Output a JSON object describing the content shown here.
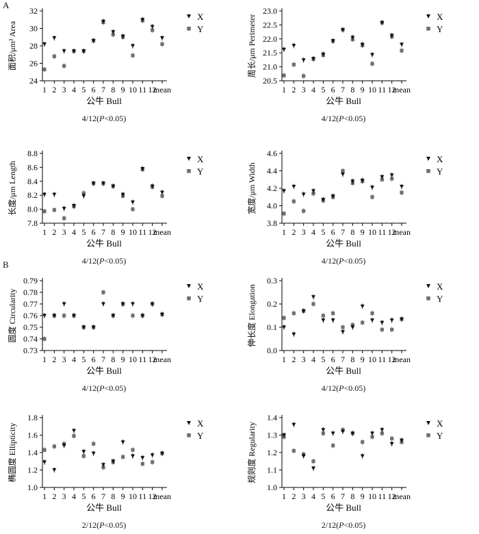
{
  "section_labels": {
    "a": "A",
    "b": "B"
  },
  "legend_labels": {
    "x": "X",
    "y": "Y"
  },
  "chart_data": [
    {
      "type": "scatter",
      "id": "area",
      "ylabel": "面积/μm² Area",
      "xlabel": "公牛 Bull",
      "caption": "4/12(P<0.05)",
      "ylim": [
        24,
        32
      ],
      "yticks": [
        24,
        26,
        28,
        30,
        32
      ],
      "categories": [
        "1",
        "2",
        "3",
        "4",
        "5",
        "6",
        "7",
        "8",
        "9",
        "10",
        "11",
        "12",
        "mean"
      ],
      "series": [
        {
          "name": "X",
          "values": [
            28.2,
            28.9,
            27.4,
            27.4,
            27.4,
            28.6,
            30.8,
            29.6,
            29.1,
            28.0,
            31.0,
            30.2,
            28.9
          ]
        },
        {
          "name": "Y",
          "values": [
            25.3,
            26.8,
            25.7,
            27.4,
            27.4,
            28.6,
            30.7,
            29.3,
            29.0,
            26.9,
            30.9,
            29.8,
            28.2
          ]
        }
      ]
    },
    {
      "type": "scatter",
      "id": "perimeter",
      "ylabel": "周长/μm Perimeter",
      "xlabel": "公牛 Bull",
      "caption": "4/12(P<0.05)",
      "ylim": [
        20.5,
        23.0
      ],
      "yticks": [
        20.5,
        21.0,
        21.5,
        22.0,
        22.5,
        23.0
      ],
      "categories": [
        "1",
        "2",
        "3",
        "4",
        "5",
        "6",
        "7",
        "8",
        "9",
        "10",
        "11",
        "12",
        "mean"
      ],
      "series": [
        {
          "name": "X",
          "values": [
            21.62,
            21.76,
            21.24,
            21.29,
            21.45,
            21.93,
            22.32,
            22.05,
            21.8,
            21.43,
            22.58,
            22.12,
            21.8
          ]
        },
        {
          "name": "Y",
          "values": [
            20.69,
            21.08,
            20.67,
            21.28,
            21.42,
            21.92,
            22.33,
            21.98,
            21.77,
            21.11,
            22.58,
            22.08,
            21.58
          ]
        }
      ]
    },
    {
      "type": "scatter",
      "id": "length",
      "ylabel": "长度/μm Length",
      "xlabel": "公牛 Bull",
      "caption": "4/12(P<0.05)",
      "ylim": [
        7.8,
        8.8
      ],
      "yticks": [
        7.8,
        8.0,
        8.2,
        8.4,
        8.6,
        8.8
      ],
      "categories": [
        "1",
        "2",
        "3",
        "4",
        "5",
        "6",
        "7",
        "8",
        "9",
        "10",
        "11",
        "12",
        "mean"
      ],
      "series": [
        {
          "name": "X",
          "values": [
            8.21,
            8.21,
            8.01,
            8.05,
            8.19,
            8.37,
            8.37,
            8.33,
            8.21,
            8.1,
            8.58,
            8.33,
            8.24
          ]
        },
        {
          "name": "Y",
          "values": [
            7.97,
            7.99,
            7.87,
            8.04,
            8.23,
            8.37,
            8.37,
            8.33,
            8.19,
            8.0,
            8.57,
            8.32,
            8.19
          ]
        }
      ]
    },
    {
      "type": "scatter",
      "id": "width",
      "ylabel": "宽度/μm Width",
      "xlabel": "公牛 Bull",
      "caption": "4/12(P<0.05)",
      "ylim": [
        3.8,
        4.6
      ],
      "yticks": [
        3.8,
        4.0,
        4.2,
        4.4,
        4.6
      ],
      "categories": [
        "1",
        "2",
        "3",
        "4",
        "5",
        "6",
        "7",
        "8",
        "9",
        "10",
        "11",
        "12",
        "mean"
      ],
      "series": [
        {
          "name": "X",
          "values": [
            4.17,
            4.22,
            4.13,
            4.17,
            4.07,
            4.11,
            4.36,
            4.28,
            4.29,
            4.21,
            4.33,
            4.35,
            4.22
          ]
        },
        {
          "name": "Y",
          "values": [
            3.91,
            4.05,
            3.94,
            4.14,
            4.06,
            4.1,
            4.4,
            4.26,
            4.28,
            4.1,
            4.3,
            4.31,
            4.15
          ]
        }
      ]
    },
    {
      "type": "scatter",
      "id": "circularity",
      "ylabel": "圆度 Circularity",
      "xlabel": "公牛 Bull",
      "caption": "4/12(P<0.05)",
      "ylim": [
        0.73,
        0.79
      ],
      "yticks": [
        0.73,
        0.74,
        0.75,
        0.76,
        0.77,
        0.78,
        0.79
      ],
      "categories": [
        "1",
        "2",
        "3",
        "4",
        "5",
        "6",
        "7",
        "8",
        "9",
        "10",
        "11",
        "12",
        "mean"
      ],
      "series": [
        {
          "name": "X",
          "values": [
            0.76,
            0.76,
            0.77,
            0.76,
            0.75,
            0.75,
            0.77,
            0.76,
            0.77,
            0.77,
            0.76,
            0.77,
            0.761
          ]
        },
        {
          "name": "Y",
          "values": [
            0.74,
            0.76,
            0.76,
            0.76,
            0.75,
            0.75,
            0.78,
            0.76,
            0.77,
            0.76,
            0.76,
            0.77,
            0.761
          ]
        }
      ]
    },
    {
      "type": "scatter",
      "id": "elongation",
      "ylabel": "伸长度 Elongation",
      "xlabel": "公牛 Bull",
      "caption": "4/12(P<0.05)",
      "ylim": [
        0.0,
        0.3
      ],
      "yticks": [
        0.0,
        0.1,
        0.2,
        0.3
      ],
      "categories": [
        "1",
        "2",
        "3",
        "4",
        "5",
        "6",
        "7",
        "8",
        "9",
        "10",
        "11",
        "12",
        "mean"
      ],
      "series": [
        {
          "name": "X",
          "values": [
            0.1,
            0.07,
            0.17,
            0.23,
            0.13,
            0.13,
            0.08,
            0.1,
            0.19,
            0.13,
            0.12,
            0.13,
            0.135
          ]
        },
        {
          "name": "Y",
          "values": [
            0.14,
            0.16,
            0.17,
            0.2,
            0.15,
            0.16,
            0.1,
            0.11,
            0.12,
            0.16,
            0.09,
            0.09,
            0.135
          ]
        }
      ]
    },
    {
      "type": "scatter",
      "id": "ellipticity",
      "ylabel": "椭圆度 Ellipticity",
      "xlabel": "公牛 Bull",
      "caption": "2/12(P<0.05)",
      "ylim": [
        1.0,
        1.8
      ],
      "yticks": [
        1.0,
        1.2,
        1.4,
        1.6,
        1.8
      ],
      "categories": [
        "1",
        "2",
        "3",
        "4",
        "5",
        "6",
        "7",
        "8",
        "9",
        "10",
        "11",
        "12",
        "mean"
      ],
      "series": [
        {
          "name": "X",
          "values": [
            1.29,
            1.2,
            1.48,
            1.65,
            1.41,
            1.39,
            1.26,
            1.3,
            1.52,
            1.36,
            1.34,
            1.37,
            1.39
          ]
        },
        {
          "name": "Y",
          "values": [
            1.43,
            1.47,
            1.5,
            1.59,
            1.36,
            1.5,
            1.23,
            1.29,
            1.35,
            1.43,
            1.27,
            1.29,
            1.39
          ]
        }
      ]
    },
    {
      "type": "scatter",
      "id": "regularity",
      "ylabel": "规则度 Regularity",
      "xlabel": "公牛 Bull",
      "caption": "2/12(P<0.05)",
      "ylim": [
        1.0,
        1.4
      ],
      "yticks": [
        1.0,
        1.1,
        1.2,
        1.3,
        1.4
      ],
      "categories": [
        "1",
        "2",
        "3",
        "4",
        "5",
        "6",
        "7",
        "8",
        "9",
        "10",
        "11",
        "12",
        "mean"
      ],
      "series": [
        {
          "name": "X",
          "values": [
            1.3,
            1.36,
            1.18,
            1.11,
            1.33,
            1.31,
            1.32,
            1.31,
            1.18,
            1.31,
            1.33,
            1.25,
            1.27
          ]
        },
        {
          "name": "Y",
          "values": [
            1.29,
            1.21,
            1.19,
            1.15,
            1.31,
            1.24,
            1.33,
            1.31,
            1.26,
            1.29,
            1.31,
            1.28,
            1.26
          ]
        }
      ]
    }
  ]
}
